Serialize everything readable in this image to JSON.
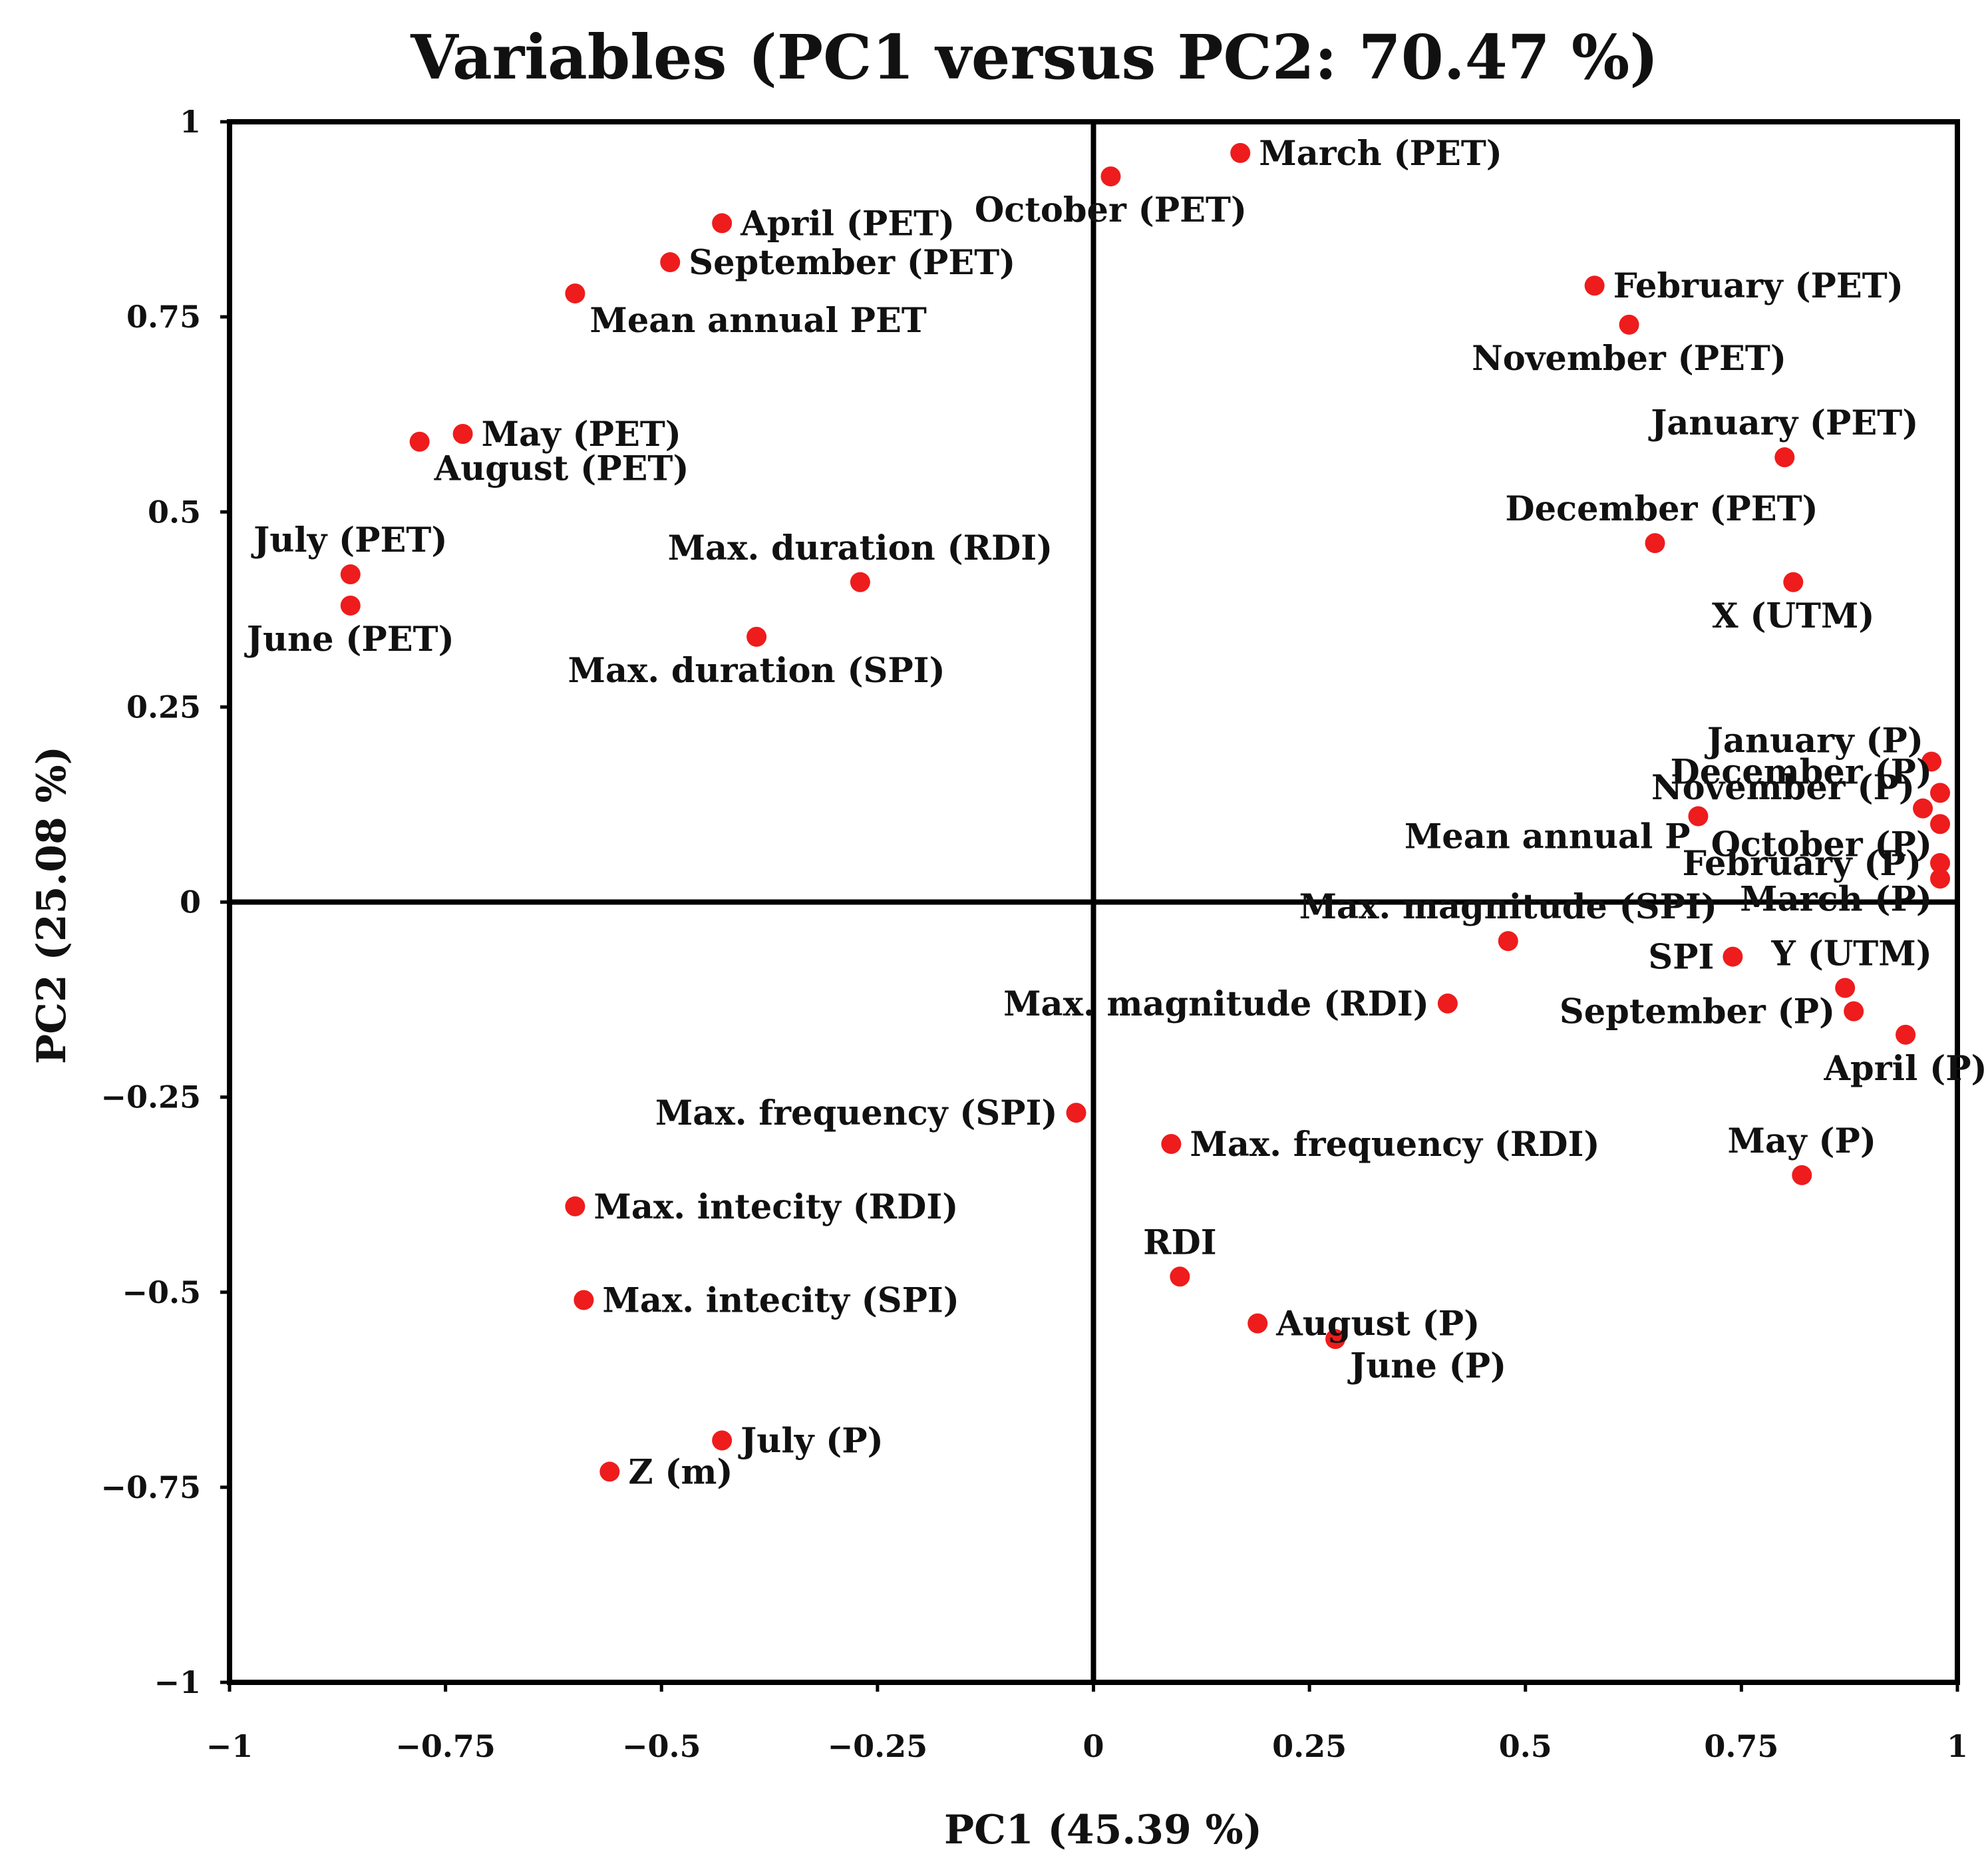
{
  "colors": {
    "point": "#ee1c1c",
    "axis": "#000000",
    "text": "#111111"
  },
  "chart_data": {
    "type": "scatter",
    "title": "Variables (PC1 versus PC2: 70.47 %)",
    "xlabel": "PC1 (45.39 %)",
    "ylabel": "PC2 (25.08 %)",
    "xlim": [
      -1,
      1
    ],
    "ylim": [
      -1,
      1
    ],
    "grid": false,
    "zero_lines": true,
    "x_ticks": [
      {
        "value": -1,
        "label": "−1"
      },
      {
        "value": -0.75,
        "label": "−0.75"
      },
      {
        "value": -0.5,
        "label": "−0.5"
      },
      {
        "value": -0.25,
        "label": "−0.25"
      },
      {
        "value": 0,
        "label": "0"
      },
      {
        "value": 0.25,
        "label": "0.25"
      },
      {
        "value": 0.5,
        "label": "0.5"
      },
      {
        "value": 0.75,
        "label": "0.75"
      },
      {
        "value": 1,
        "label": "1"
      }
    ],
    "y_ticks": [
      {
        "value": 1,
        "label": "1"
      },
      {
        "value": 0.75,
        "label": "0.75"
      },
      {
        "value": 0.5,
        "label": "0.5"
      },
      {
        "value": 0.25,
        "label": "0.25"
      },
      {
        "value": 0,
        "label": "0"
      },
      {
        "value": -0.25,
        "label": "−0.25"
      },
      {
        "value": -0.5,
        "label": "−0.5"
      },
      {
        "value": -0.75,
        "label": "−0.75"
      },
      {
        "value": -1,
        "label": "−1"
      }
    ],
    "points": [
      {
        "label": "March (PET)",
        "x": 0.17,
        "y": 0.96,
        "pos": "right"
      },
      {
        "label": "October (PET)",
        "x": 0.02,
        "y": 0.93,
        "pos": "below"
      },
      {
        "label": "April (PET)",
        "x": -0.43,
        "y": 0.87,
        "pos": "right"
      },
      {
        "label": "September (PET)",
        "x": -0.49,
        "y": 0.82,
        "pos": "right"
      },
      {
        "label": "Mean annual PET",
        "x": -0.6,
        "y": 0.78,
        "pos": "below-right"
      },
      {
        "label": "February (PET)",
        "x": 0.58,
        "y": 0.79,
        "pos": "right"
      },
      {
        "label": "November (PET)",
        "x": 0.62,
        "y": 0.74,
        "pos": "below"
      },
      {
        "label": "May (PET)",
        "x": -0.73,
        "y": 0.6,
        "pos": "right"
      },
      {
        "label": "August (PET)",
        "x": -0.78,
        "y": 0.59,
        "pos": "below-right"
      },
      {
        "label": "January (PET)",
        "x": 0.8,
        "y": 0.57,
        "pos": "above"
      },
      {
        "label": "December (PET)",
        "x": 0.65,
        "y": 0.46,
        "pos": "above-right"
      },
      {
        "label": "X (UTM)",
        "x": 0.81,
        "y": 0.41,
        "pos": "below"
      },
      {
        "label": "Max. duration (RDI)",
        "x": -0.27,
        "y": 0.41,
        "pos": "above"
      },
      {
        "label": "July (PET)",
        "x": -0.86,
        "y": 0.42,
        "pos": "above"
      },
      {
        "label": "June (PET)",
        "x": -0.86,
        "y": 0.38,
        "pos": "below"
      },
      {
        "label": "Max. duration (SPI)",
        "x": -0.39,
        "y": 0.34,
        "pos": "below"
      },
      {
        "label": "January (P)",
        "x": 0.97,
        "y": 0.18,
        "pos": "above-left"
      },
      {
        "label": "December (P)",
        "x": 0.98,
        "y": 0.14,
        "pos": "above-left"
      },
      {
        "label": "November (P)",
        "x": 0.96,
        "y": 0.12,
        "pos": "above-left"
      },
      {
        "label": "Mean annual P",
        "x": 0.7,
        "y": 0.11,
        "pos": "below-left"
      },
      {
        "label": "October (P)",
        "x": 0.98,
        "y": 0.1,
        "pos": "below-left"
      },
      {
        "label": "February (P)",
        "x": 0.98,
        "y": 0.05,
        "pos": "left"
      },
      {
        "label": "March (P)",
        "x": 0.98,
        "y": 0.03,
        "pos": "below-left"
      },
      {
        "label": "Max. magnitude (SPI)",
        "x": 0.48,
        "y": -0.05,
        "pos": "above"
      },
      {
        "label": "SPI",
        "x": 0.74,
        "y": -0.07,
        "pos": "left"
      },
      {
        "label": "Y (UTM)",
        "x": 0.87,
        "y": -0.11,
        "pos": "above-right"
      },
      {
        "label": "September (P)",
        "x": 0.88,
        "y": -0.14,
        "pos": "left"
      },
      {
        "label": "April (P)",
        "x": 0.94,
        "y": -0.17,
        "pos": "below"
      },
      {
        "label": "Max. magnitude (RDI)",
        "x": 0.41,
        "y": -0.13,
        "pos": "left"
      },
      {
        "label": "Max. frequency (SPI)",
        "x": -0.02,
        "y": -0.27,
        "pos": "left"
      },
      {
        "label": "Max. frequency (RDI)",
        "x": 0.09,
        "y": -0.31,
        "pos": "right"
      },
      {
        "label": "May (P)",
        "x": 0.82,
        "y": -0.35,
        "pos": "above"
      },
      {
        "label": "Max. intecity (RDI)",
        "x": -0.6,
        "y": -0.39,
        "pos": "right"
      },
      {
        "label": "RDI",
        "x": 0.1,
        "y": -0.48,
        "pos": "above"
      },
      {
        "label": "Max. intecity (SPI)",
        "x": -0.59,
        "y": -0.51,
        "pos": "right"
      },
      {
        "label": "August (P)",
        "x": 0.19,
        "y": -0.54,
        "pos": "right"
      },
      {
        "label": "June (P)",
        "x": 0.28,
        "y": -0.56,
        "pos": "below-right"
      },
      {
        "label": "July (P)",
        "x": -0.43,
        "y": -0.69,
        "pos": "right"
      },
      {
        "label": "Z (m)",
        "x": -0.56,
        "y": -0.73,
        "pos": "right"
      }
    ]
  }
}
